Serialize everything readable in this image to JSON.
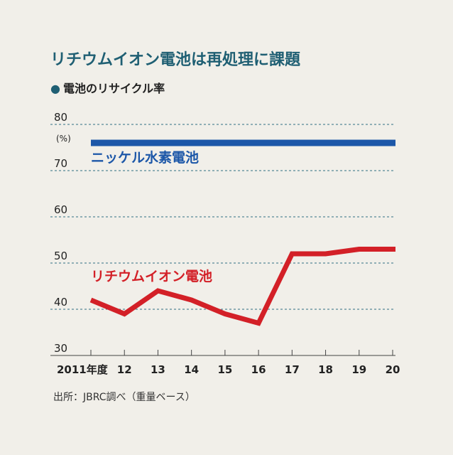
{
  "figure": {
    "title": "リチウムイオン電池は再処理に課題",
    "subtitle": "電池のリサイクル率",
    "unit": "(%)",
    "source": "出所：JBRC調べ（重量ベース）"
  },
  "colors": {
    "background": "#f1efe9",
    "title": "#1f5f73",
    "grid": "#2f6f82",
    "nickel": "#1c57a8",
    "lithium": "#d32027"
  },
  "chart_data": {
    "type": "line",
    "x": [
      "2011年度",
      "12",
      "13",
      "14",
      "15",
      "16",
      "17",
      "18",
      "19",
      "20"
    ],
    "ylim": [
      30,
      80
    ],
    "yticks": [
      30,
      40,
      50,
      60,
      70,
      80
    ],
    "grid": true,
    "series": [
      {
        "name": "ニッケル水素電池",
        "values": [
          76,
          76,
          76,
          76,
          76,
          76,
          76,
          76,
          76,
          76
        ]
      },
      {
        "name": "リチウムイオン電池",
        "values": [
          42,
          39,
          44,
          42,
          39,
          37,
          52,
          52,
          53,
          53
        ]
      }
    ]
  }
}
